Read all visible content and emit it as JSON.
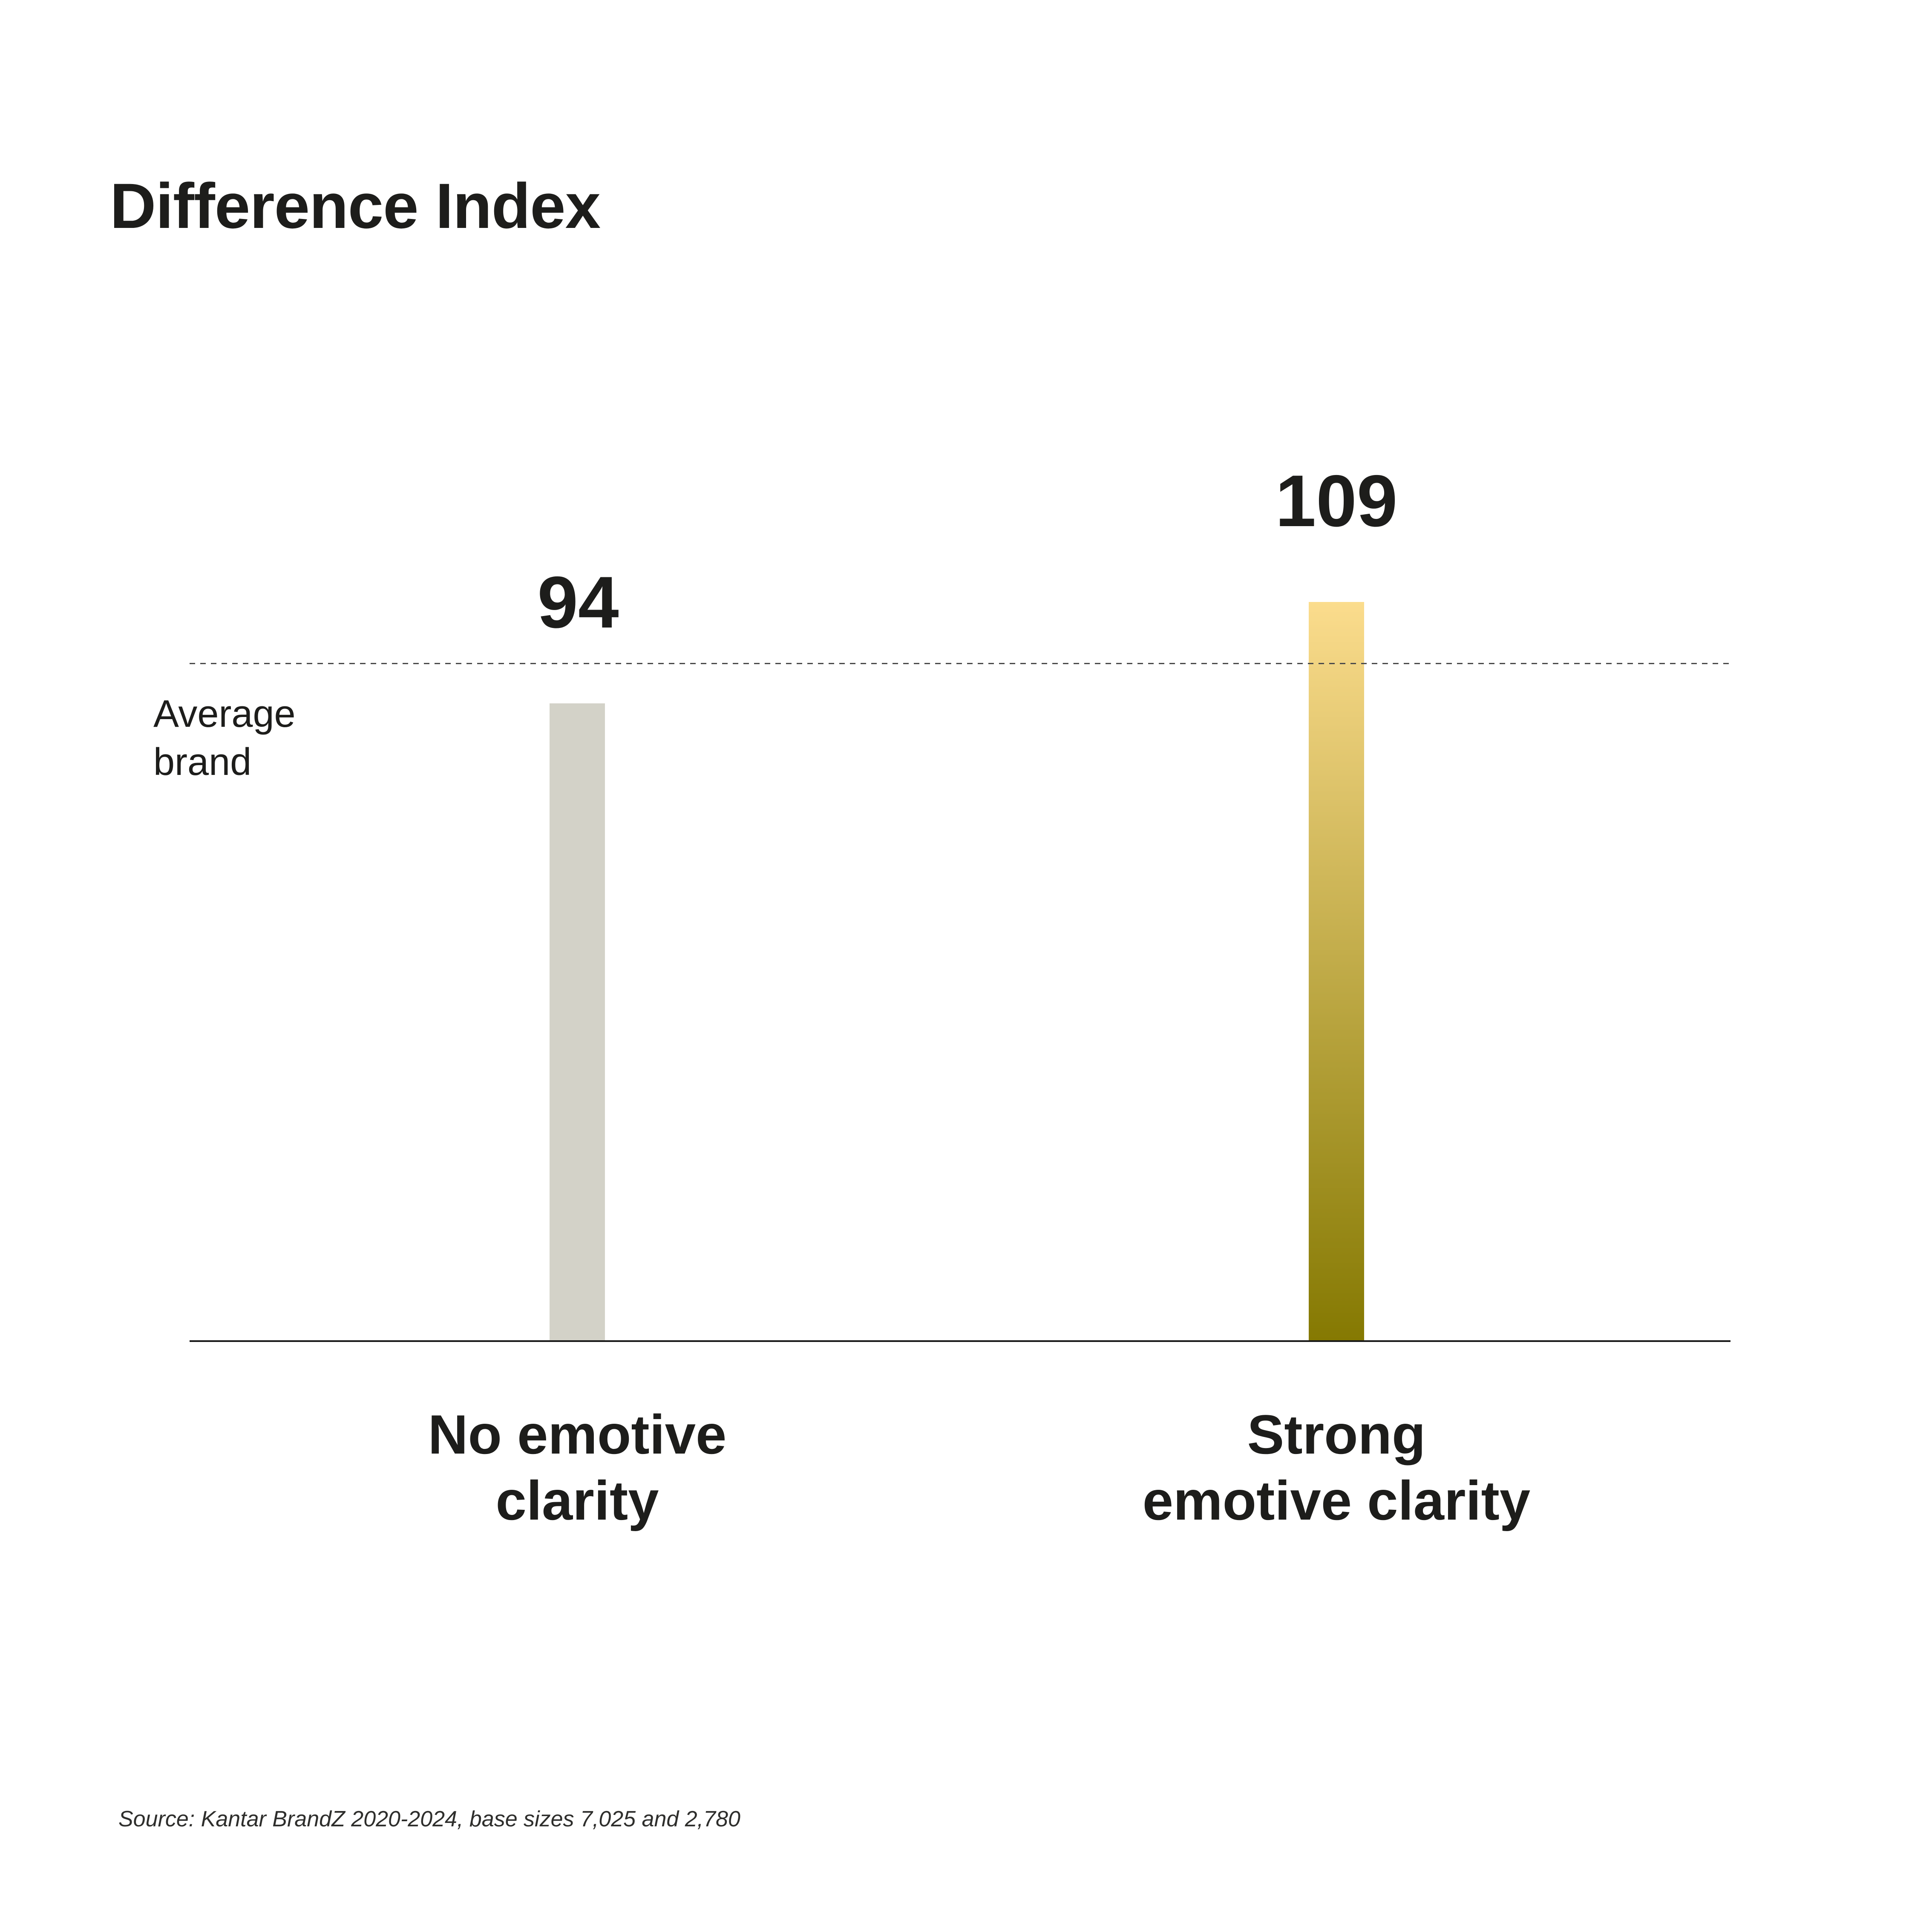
{
  "chart_data": {
    "type": "bar",
    "title": "Difference Index",
    "categories": [
      "No emotive clarity",
      "Strong emotive clarity"
    ],
    "category_labels": [
      "No emotive\nclarity",
      "Strong\nemotive clarity"
    ],
    "values": [
      94,
      109
    ],
    "reference_line": {
      "label": "Average\nbrand",
      "value": 100
    },
    "xlabel": "",
    "ylabel": "",
    "ylim": [
      0,
      118
    ],
    "grid": false,
    "legend": "none",
    "bar_colors": {
      "flat": "#d3d2c8",
      "gradient": [
        "#fbdc8d",
        "#857902"
      ]
    },
    "line_colors": {
      "reference_dash": "#4b4b4b",
      "axis": "#191919"
    },
    "text_color": "#1d1d1b",
    "source": "Source: Kantar BrandZ 2020-2024, base sizes 7,025 and 2,780"
  }
}
